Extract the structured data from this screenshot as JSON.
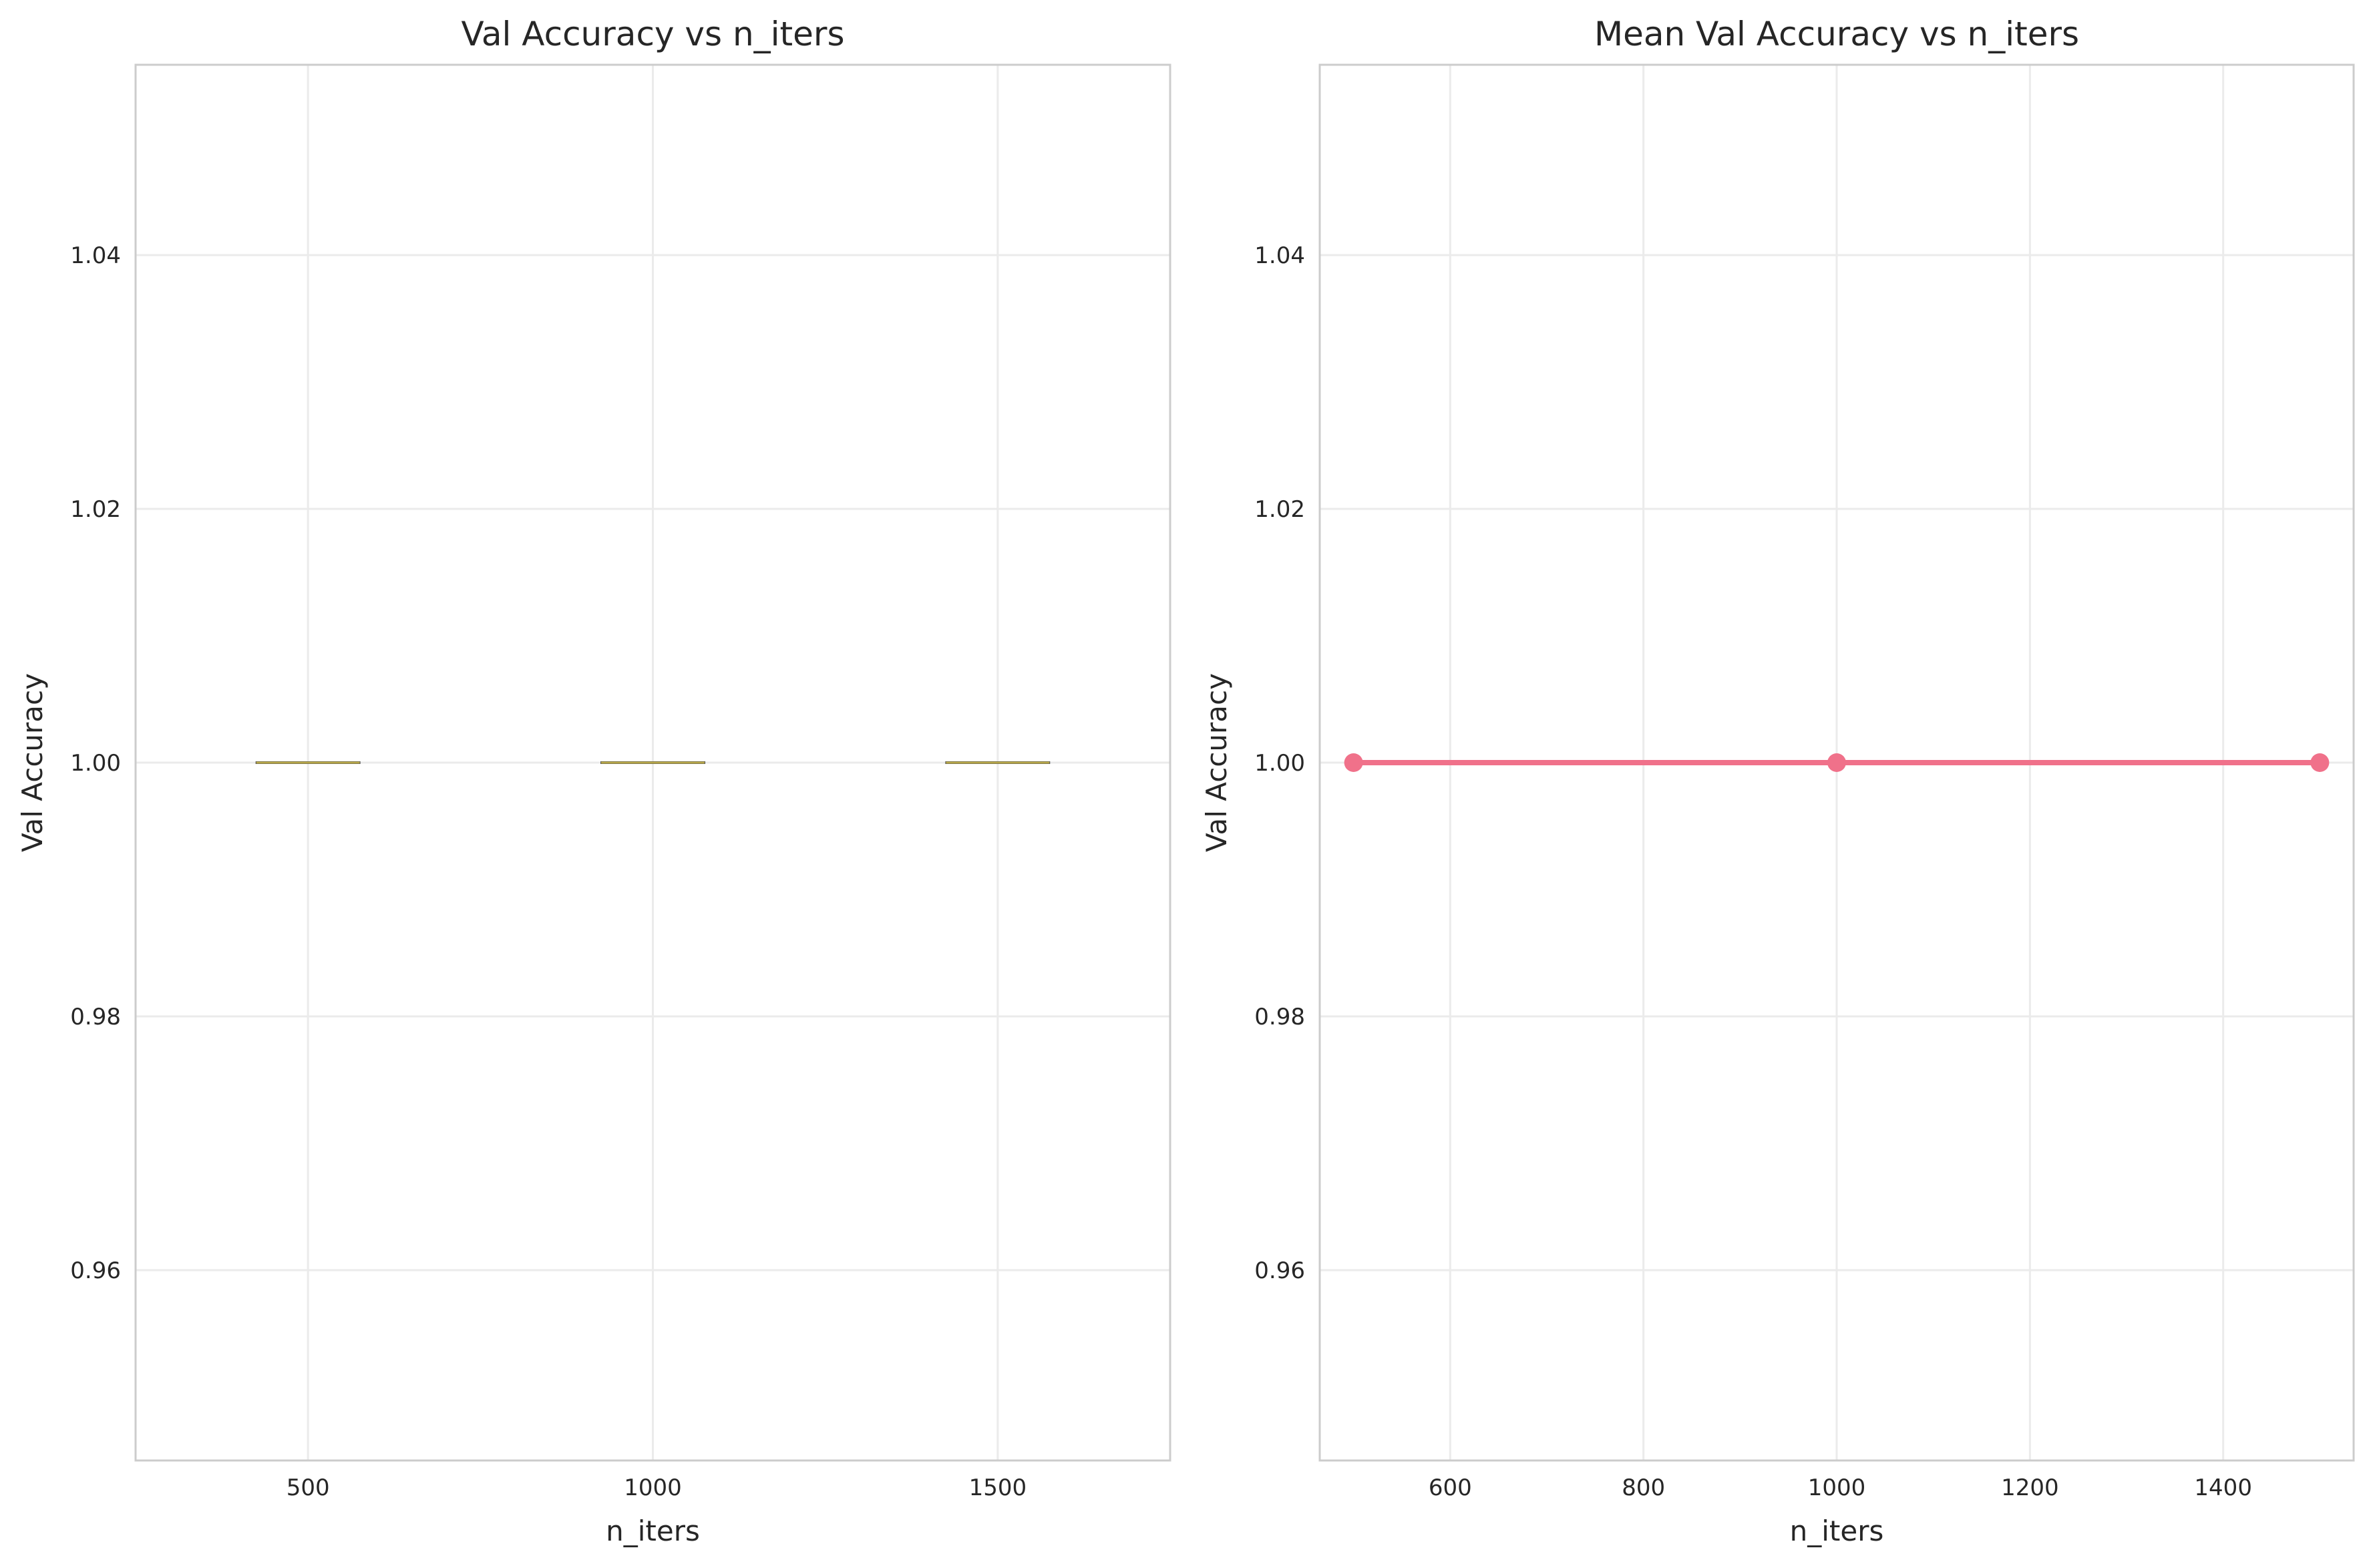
{
  "chart_data": [
    {
      "type": "box",
      "title": "Val Accuracy vs n_iters",
      "xlabel": "n_iters",
      "ylabel": "Val Accuracy",
      "categories": [
        "500",
        "1000",
        "1500"
      ],
      "boxes": [
        {
          "category": "500",
          "min": 1.0,
          "q1": 1.0,
          "median": 1.0,
          "q3": 1.0,
          "max": 1.0
        },
        {
          "category": "1000",
          "min": 1.0,
          "q1": 1.0,
          "median": 1.0,
          "q3": 1.0,
          "max": 1.0
        },
        {
          "category": "1500",
          "min": 1.0,
          "q1": 1.0,
          "median": 1.0,
          "q3": 1.0,
          "max": 1.0
        }
      ],
      "ylim": [
        0.945,
        1.055
      ],
      "yticks": [
        0.96,
        0.98,
        1.0,
        1.02,
        1.04
      ],
      "ytick_labels": [
        "0.96",
        "0.98",
        "1.00",
        "1.02",
        "1.04"
      ],
      "grid": true,
      "colors": {
        "median": "#b8a84a",
        "box": "#4d4d4d"
      }
    },
    {
      "type": "line",
      "title": "Mean Val Accuracy vs n_iters",
      "xlabel": "n_iters",
      "ylabel": "Val Accuracy",
      "series": [
        {
          "x": [
            500,
            1000,
            1500
          ],
          "y": [
            1.0,
            1.0,
            1.0
          ],
          "color": "#f0718a",
          "marker": "circle"
        }
      ],
      "xlim": [
        465,
        1535
      ],
      "ylim": [
        0.945,
        1.055
      ],
      "xticks": [
        600,
        800,
        1000,
        1200,
        1400
      ],
      "xtick_labels": [
        "600",
        "800",
        "1000",
        "1200",
        "1400"
      ],
      "yticks": [
        0.96,
        0.98,
        1.0,
        1.02,
        1.04
      ],
      "ytick_labels": [
        "0.96",
        "0.98",
        "1.00",
        "1.02",
        "1.04"
      ],
      "grid": true
    }
  ]
}
